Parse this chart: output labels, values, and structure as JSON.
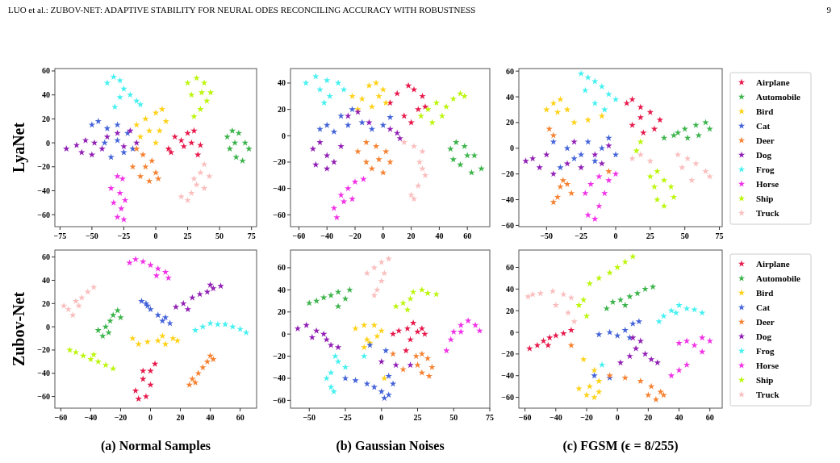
{
  "chart_data": [
    {
      "type": "scatter",
      "ylabel": "LyaNet",
      "marker": "star",
      "annotations": [
        "LUO et al.: ZUBOV-NET: ADAPTIVE STABILITY FOR NEURAL ODES RECONCILING ACCURACY WITH ROBUSTNESS",
        "9"
      ],
      "xlim": [
        -79,
        79
      ],
      "ylim": [
        -70,
        62
      ],
      "xticks": [
        -75,
        -50,
        -25,
        0,
        25,
        50,
        75
      ],
      "yticks": [
        -60,
        -40,
        -20,
        0,
        20,
        40,
        60
      ],
      "series": [
        {
          "color": "#e6194b",
          "x": [
            10,
            15,
            20,
            25,
            30,
            35,
            33,
            12,
            22,
            28
          ],
          "values": [
            -5,
            5,
            2,
            8,
            10,
            -2,
            -10,
            -8,
            -3,
            0
          ]
        },
        {
          "color": "#3cb44b",
          "x": [
            56,
            60,
            65,
            70,
            73,
            68,
            63,
            58,
            62
          ],
          "values": [
            5,
            10,
            8,
            0,
            -5,
            -15,
            -12,
            -5,
            0
          ]
        },
        {
          "color": "#ffd21a",
          "x": [
            -15,
            -8,
            0,
            5,
            8,
            3,
            -5,
            0,
            -12
          ],
          "values": [
            15,
            20,
            25,
            28,
            18,
            10,
            10,
            0,
            5
          ]
        },
        {
          "color": "#4363d8",
          "x": [
            -50,
            -45,
            -38,
            -30,
            -22,
            -18,
            -25,
            -35,
            -40,
            -30
          ],
          "values": [
            15,
            18,
            12,
            15,
            8,
            -5,
            -8,
            -12,
            0,
            2
          ]
        },
        {
          "color": "#f58231",
          "x": [
            -15,
            -10,
            -18,
            -12,
            -5,
            0,
            -3,
            -8,
            2
          ],
          "values": [
            -5,
            -10,
            -20,
            -28,
            -32,
            -25,
            -15,
            -20,
            -30
          ]
        },
        {
          "color": "#911eb4",
          "x": [
            -70,
            -62,
            -55,
            -48,
            -42,
            -50,
            -58,
            -38,
            -30,
            -25,
            -20,
            -15
          ],
          "values": [
            -5,
            -2,
            2,
            0,
            -5,
            -10,
            -8,
            5,
            8,
            -3,
            10,
            0
          ]
        },
        {
          "color": "#46f0f0",
          "x": [
            -38,
            -33,
            -28,
            -25,
            -20,
            -15,
            -12,
            -28,
            -32
          ],
          "values": [
            50,
            55,
            52,
            45,
            40,
            35,
            32,
            38,
            30
          ]
        },
        {
          "color": "#f032e6",
          "x": [
            -30,
            -26,
            -35,
            -28,
            -33,
            -27,
            -30,
            -25,
            -24
          ],
          "values": [
            -28,
            -30,
            -38,
            -42,
            -50,
            -55,
            -62,
            -64,
            -48
          ]
        },
        {
          "color": "#bcf60c",
          "x": [
            25,
            32,
            38,
            43,
            40,
            35,
            30,
            28,
            36
          ],
          "values": [
            50,
            54,
            50,
            42,
            35,
            28,
            22,
            40,
            42
          ]
        },
        {
          "color": "#fabebe",
          "x": [
            20,
            25,
            28,
            32,
            35,
            38,
            42,
            30,
            38
          ],
          "values": [
            -45,
            -48,
            -42,
            -35,
            -25,
            -18,
            -28,
            -30,
            -38
          ]
        }
      ]
    },
    {
      "type": "scatter",
      "marker": "star",
      "xlim": [
        -66,
        76
      ],
      "ylim": [
        -69,
        51
      ],
      "xticks": [
        -60,
        -40,
        -20,
        0,
        20,
        40,
        60
      ],
      "yticks": [
        -60,
        -40,
        -20,
        0,
        20,
        40
      ],
      "series": [
        {
          "color": "#e6194b",
          "x": [
            5,
            10,
            18,
            22,
            28,
            25,
            20,
            15,
            30
          ],
          "values": [
            25,
            32,
            38,
            35,
            30,
            20,
            10,
            15,
            22
          ]
        },
        {
          "color": "#3cb44b",
          "x": [
            48,
            52,
            58,
            65,
            70,
            63,
            55,
            50,
            60
          ],
          "values": [
            -10,
            -5,
            -8,
            -15,
            -25,
            -28,
            -22,
            -18,
            -15
          ]
        },
        {
          "color": "#ffd21a",
          "x": [
            -22,
            -15,
            -10,
            -5,
            0,
            2,
            -8,
            -18,
            -3
          ],
          "values": [
            30,
            28,
            38,
            40,
            35,
            25,
            22,
            20,
            30
          ]
        },
        {
          "color": "#4363d8",
          "x": [
            -45,
            -40,
            -35,
            -30,
            -22,
            -15,
            -8,
            0,
            5,
            -25
          ],
          "values": [
            5,
            8,
            3,
            15,
            20,
            10,
            5,
            8,
            14,
            8
          ]
        },
        {
          "color": "#f58231",
          "x": [
            -18,
            -12,
            -5,
            2,
            5,
            0,
            -8,
            -12,
            -3
          ],
          "values": [
            -12,
            -5,
            -8,
            -12,
            -20,
            -28,
            -25,
            -20,
            -18
          ]
        },
        {
          "color": "#911eb4",
          "x": [
            -50,
            -45,
            -40,
            -48,
            -40,
            -35,
            -30,
            -25,
            -18,
            -10,
            5,
            10,
            12
          ],
          "values": [
            -10,
            -5,
            -15,
            -22,
            -25,
            -20,
            -8,
            15,
            18,
            10,
            5,
            2,
            -2
          ]
        },
        {
          "color": "#46f0f0",
          "x": [
            -55,
            -48,
            -40,
            -32,
            -28,
            -45,
            -38,
            -42
          ],
          "values": [
            40,
            45,
            42,
            40,
            35,
            35,
            30,
            25
          ]
        },
        {
          "color": "#f032e6",
          "x": [
            -35,
            -33,
            -28,
            -25,
            -20,
            -14,
            -30,
            -22
          ],
          "values": [
            -55,
            -62,
            -50,
            -40,
            -35,
            -33,
            -45,
            -48
          ]
        },
        {
          "color": "#bcf60c",
          "x": [
            27,
            32,
            38,
            45,
            50,
            55,
            58,
            42,
            35
          ],
          "values": [
            15,
            20,
            25,
            22,
            28,
            32,
            30,
            15,
            10
          ]
        },
        {
          "color": "#fabebe",
          "x": [
            15,
            22,
            28,
            26,
            30,
            25,
            20,
            22,
            28
          ],
          "values": [
            -5,
            -8,
            -12,
            -20,
            -30,
            -38,
            -45,
            -48,
            -25
          ]
        }
      ]
    },
    {
      "type": "scatter",
      "marker": "star",
      "legend": "right",
      "xlim": [
        -70,
        77
      ],
      "ylim": [
        -61,
        62
      ],
      "xticks": [
        -50,
        -25,
        0,
        25,
        50,
        75
      ],
      "yticks": [
        -60,
        -40,
        -20,
        0,
        20,
        40,
        60
      ],
      "series": [
        {
          "name": "Airplane",
          "color": "#e6194b",
          "x": [
            8,
            12,
            18,
            25,
            32,
            28,
            20,
            12,
            18
          ],
          "values": [
            35,
            38,
            32,
            28,
            22,
            15,
            12,
            18,
            24
          ]
        },
        {
          "name": "Automobile",
          "color": "#3cb44b",
          "x": [
            35,
            42,
            50,
            58,
            65,
            68,
            60,
            52,
            45
          ],
          "values": [
            8,
            10,
            15,
            18,
            20,
            15,
            10,
            8,
            12
          ]
        },
        {
          "name": "Bird",
          "color": "#ffd21a",
          "x": [
            -50,
            -45,
            -40,
            -35,
            -42,
            -30,
            -20,
            -10
          ],
          "values": [
            30,
            35,
            38,
            30,
            28,
            20,
            22,
            25
          ]
        },
        {
          "name": "Cat",
          "color": "#4363d8",
          "x": [
            -45,
            -35,
            -30,
            -25,
            -20,
            -15,
            -10,
            -5,
            0,
            -40
          ],
          "values": [
            5,
            0,
            -8,
            -5,
            5,
            -10,
            0,
            8,
            -5,
            -15
          ]
        },
        {
          "name": "Deer",
          "color": "#f58231",
          "x": [
            -45,
            -42,
            -40,
            -35,
            -32,
            -38,
            -48,
            -45,
            -5
          ],
          "values": [
            -42,
            -38,
            -30,
            -28,
            -35,
            -25,
            15,
            10,
            -18
          ]
        },
        {
          "name": "Dog",
          "color": "#911eb4",
          "x": [
            -65,
            -60,
            -55,
            -50,
            -45,
            -35,
            -30,
            -25,
            -15,
            -10,
            -5
          ],
          "values": [
            -10,
            -8,
            -15,
            -5,
            -20,
            -12,
            5,
            -15,
            -5,
            -12,
            2
          ]
        },
        {
          "name": "Frog",
          "color": "#46f0f0",
          "x": [
            -25,
            -20,
            -15,
            -10,
            -5,
            0,
            -8,
            -15,
            -22
          ],
          "values": [
            58,
            55,
            52,
            48,
            42,
            38,
            30,
            35,
            45
          ]
        },
        {
          "name": "Horse",
          "color": "#f032e6",
          "x": [
            -22,
            -18,
            -12,
            -5,
            0,
            -8,
            -12,
            -20,
            -15
          ],
          "values": [
            -35,
            -28,
            -22,
            -25,
            -20,
            -35,
            -45,
            -52,
            -55
          ]
        },
        {
          "name": "Ship",
          "color": "#bcf60c",
          "x": [
            25,
            30,
            35,
            40,
            42,
            35,
            30,
            28,
            18,
            15
          ],
          "values": [
            -22,
            -18,
            -25,
            -30,
            -38,
            -45,
            -40,
            -30,
            5,
            -2
          ]
        },
        {
          "name": "Truck",
          "color": "#fabebe",
          "x": [
            12,
            18,
            25,
            45,
            52,
            58,
            65,
            68,
            55,
            48
          ],
          "values": [
            -8,
            -5,
            -10,
            -5,
            -8,
            -12,
            -18,
            -22,
            -25,
            -15
          ]
        }
      ]
    },
    {
      "type": "scatter",
      "ylabel": "Zubov-Net",
      "xlabel": "(a) Normal Samples",
      "marker": "star",
      "xlim": [
        -64,
        71
      ],
      "ylim": [
        -70,
        66
      ],
      "xticks": [
        -60,
        -40,
        -20,
        0,
        20,
        40,
        60
      ],
      "yticks": [
        -60,
        -40,
        -20,
        0,
        20,
        40,
        60
      ],
      "series": [
        {
          "color": "#e6194b",
          "x": [
            -10,
            -8,
            -3,
            0,
            -5,
            0,
            3,
            -5
          ],
          "values": [
            -55,
            -62,
            -60,
            -50,
            -45,
            -38,
            -32,
            -38
          ]
        },
        {
          "color": "#3cb44b",
          "x": [
            -35,
            -32,
            -30,
            -27,
            -25,
            -22,
            -20,
            -28
          ],
          "values": [
            -3,
            -8,
            0,
            5,
            10,
            14,
            8,
            -5
          ]
        },
        {
          "color": "#ffd21a",
          "x": [
            -12,
            -8,
            -2,
            5,
            10,
            15,
            18,
            8
          ],
          "values": [
            -10,
            -15,
            -13,
            -12,
            -15,
            -10,
            -12,
            -8
          ]
        },
        {
          "color": "#4363d8",
          "x": [
            -6,
            -3,
            0,
            5,
            10,
            13,
            8,
            -2
          ],
          "values": [
            22,
            20,
            15,
            10,
            8,
            3,
            5,
            18
          ]
        },
        {
          "color": "#f58231",
          "x": [
            26,
            28,
            32,
            35,
            38,
            40,
            42,
            30
          ],
          "values": [
            -50,
            -45,
            -40,
            -35,
            -30,
            -25,
            -28,
            -48
          ]
        },
        {
          "color": "#911eb4",
          "x": [
            17,
            22,
            28,
            33,
            38,
            42,
            47,
            40,
            25
          ],
          "values": [
            17,
            20,
            25,
            28,
            30,
            33,
            35,
            36,
            15
          ]
        },
        {
          "color": "#46f0f0",
          "x": [
            30,
            35,
            40,
            45,
            50,
            55,
            60,
            64
          ],
          "values": [
            -3,
            0,
            3,
            2,
            2,
            0,
            -2,
            -5
          ]
        },
        {
          "color": "#f032e6",
          "x": [
            -14,
            -10,
            -5,
            0,
            5,
            10,
            12,
            4
          ],
          "values": [
            55,
            58,
            56,
            53,
            50,
            47,
            42,
            44
          ]
        },
        {
          "color": "#bcf60c",
          "x": [
            -54,
            -50,
            -45,
            -40,
            -35,
            -30,
            -25,
            -38
          ],
          "values": [
            -20,
            -22,
            -25,
            -28,
            -30,
            -33,
            -36,
            -24
          ]
        },
        {
          "color": "#fabebe",
          "x": [
            -58,
            -55,
            -52,
            -50,
            -46,
            -42,
            -38,
            -48
          ],
          "values": [
            18,
            15,
            10,
            22,
            25,
            30,
            34,
            18
          ]
        }
      ]
    },
    {
      "type": "scatter",
      "xlabel": "(b) Gaussian Noises",
      "marker": "star",
      "xlim": [
        -63,
        75
      ],
      "ylim": [
        -67,
        76
      ],
      "xticks": [
        -50,
        -25,
        0,
        25,
        50,
        75
      ],
      "yticks": [
        -60,
        -40,
        -20,
        0,
        20,
        40,
        60
      ],
      "series": [
        {
          "color": "#e6194b",
          "x": [
            8,
            12,
            18,
            22,
            25,
            28,
            30,
            20,
            17
          ],
          "values": [
            0,
            3,
            5,
            10,
            2,
            5,
            0,
            -5,
            -15
          ]
        },
        {
          "color": "#3cb44b",
          "x": [
            -50,
            -45,
            -40,
            -35,
            -30,
            -25,
            -22,
            -30
          ],
          "values": [
            28,
            30,
            33,
            35,
            38,
            32,
            40,
            25
          ]
        },
        {
          "color": "#ffd21a",
          "x": [
            -18,
            -12,
            -5,
            0,
            -3,
            -10,
            -12,
            -8,
            2
          ],
          "values": [
            5,
            8,
            8,
            3,
            -2,
            -5,
            -12,
            -8,
            -40
          ]
        },
        {
          "color": "#4363d8",
          "x": [
            -25,
            -18,
            -10,
            -5,
            0,
            2,
            5,
            8,
            5,
            -8,
            3
          ],
          "values": [
            -40,
            -42,
            -45,
            -48,
            -52,
            -58,
            -55,
            -45,
            -38,
            -10,
            -15
          ]
        },
        {
          "color": "#f58231",
          "x": [
            24,
            28,
            32,
            35,
            33,
            28,
            25,
            15,
            8
          ],
          "values": [
            -20,
            -18,
            -22,
            -30,
            -38,
            -35,
            -28,
            -32,
            -18
          ]
        },
        {
          "color": "#911eb4",
          "x": [
            -58,
            -52,
            -45,
            -40,
            -38,
            -35,
            -30,
            -48,
            0,
            10,
            20
          ],
          "values": [
            5,
            8,
            3,
            0,
            -5,
            -10,
            -12,
            -3,
            -25,
            -28,
            -28
          ]
        },
        {
          "color": "#46f0f0",
          "x": [
            -32,
            -30,
            -35,
            -38,
            -35,
            -33,
            -25,
            -12
          ],
          "values": [
            -20,
            -25,
            -35,
            -40,
            -48,
            -52,
            -30,
            -20
          ]
        },
        {
          "color": "#f032e6",
          "x": [
            45,
            48,
            50,
            55,
            60,
            65,
            68,
            55
          ],
          "values": [
            -15,
            -5,
            2,
            8,
            12,
            8,
            3,
            2
          ]
        },
        {
          "color": "#bcf60c",
          "x": [
            10,
            15,
            20,
            22,
            28,
            32,
            38,
            18
          ],
          "values": [
            25,
            28,
            32,
            38,
            40,
            37,
            36,
            22
          ]
        },
        {
          "color": "#fabebe",
          "x": [
            -10,
            -5,
            0,
            5,
            2,
            0,
            -3,
            -5
          ],
          "values": [
            55,
            60,
            65,
            68,
            55,
            48,
            40,
            35
          ]
        }
      ]
    },
    {
      "type": "scatter",
      "xlabel": "(c) FGSM (ϵ = 8/255)",
      "marker": "star",
      "legend": "right",
      "xlim": [
        -64,
        68
      ],
      "ylim": [
        -70,
        76
      ],
      "xticks": [
        -60,
        -40,
        -20,
        0,
        20,
        40,
        60
      ],
      "yticks": [
        -60,
        -40,
        -20,
        0,
        20,
        40,
        60
      ],
      "series": [
        {
          "name": "Airplane",
          "color": "#e6194b",
          "x": [
            -57,
            -52,
            -48,
            -44,
            -40,
            -35,
            -30,
            -45
          ],
          "values": [
            -15,
            -12,
            -8,
            -5,
            -3,
            -1,
            2,
            -12
          ]
        },
        {
          "name": "Automobile",
          "color": "#3cb44b",
          "x": [
            -7,
            -3,
            2,
            8,
            13,
            18,
            23,
            5
          ],
          "values": [
            22,
            28,
            30,
            33,
            36,
            40,
            42,
            25
          ]
        },
        {
          "name": "Bird",
          "color": "#ffd21a",
          "x": [
            -25,
            -20,
            -15,
            -12,
            -18,
            -12,
            -22,
            -15
          ],
          "values": [
            -52,
            -58,
            -60,
            -55,
            -50,
            -45,
            -25,
            -35
          ]
        },
        {
          "name": "Cat",
          "color": "#4363d8",
          "x": [
            -12,
            -5,
            0,
            5,
            10,
            14,
            8,
            -15,
            -5
          ],
          "values": [
            -2,
            0,
            -3,
            2,
            8,
            10,
            -5,
            -40,
            -42
          ]
        },
        {
          "name": "Deer",
          "color": "#f58231",
          "x": [
            -5,
            5,
            15,
            22,
            28,
            25,
            30,
            20,
            -30
          ],
          "values": [
            -40,
            -42,
            -45,
            -50,
            -55,
            -62,
            -58,
            -58,
            -12
          ]
        },
        {
          "name": "Dog",
          "color": "#911eb4",
          "x": [
            2,
            8,
            12,
            15,
            18,
            22,
            26,
            10
          ],
          "values": [
            -28,
            -22,
            -15,
            -8,
            -20,
            -25,
            -28,
            -5
          ]
        },
        {
          "name": "Frog",
          "color": "#46f0f0",
          "x": [
            27,
            30,
            35,
            40,
            45,
            50,
            55,
            38,
            -10
          ],
          "values": [
            10,
            15,
            20,
            25,
            22,
            21,
            18,
            18,
            -30
          ]
        },
        {
          "name": "Horse",
          "color": "#f032e6",
          "x": [
            35,
            40,
            45,
            40,
            45,
            50,
            55,
            60,
            55
          ],
          "values": [
            -40,
            -35,
            -30,
            -10,
            -8,
            -12,
            -5,
            -8,
            -18
          ]
        },
        {
          "name": "Ship",
          "color": "#bcf60c",
          "x": [
            -18,
            -12,
            -5,
            0,
            5,
            10,
            -20,
            -25,
            -22
          ],
          "values": [
            45,
            50,
            55,
            60,
            65,
            70,
            15,
            25,
            30
          ]
        },
        {
          "name": "Truck",
          "color": "#fabebe",
          "x": [
            -58,
            -55,
            -50,
            -42,
            -35,
            -30,
            -40,
            -32,
            -28
          ],
          "values": [
            33,
            35,
            36,
            38,
            35,
            32,
            25,
            18,
            10
          ]
        }
      ]
    }
  ]
}
